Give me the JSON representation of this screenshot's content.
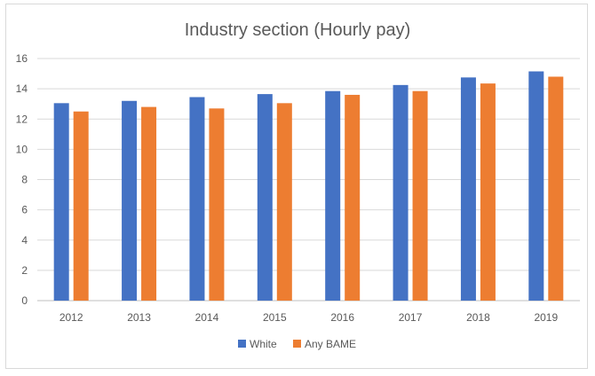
{
  "chart_data": {
    "type": "bar",
    "title": "Industry section (Hourly pay)",
    "xlabel": "",
    "ylabel": "",
    "categories": [
      "2012",
      "2013",
      "2014",
      "2015",
      "2016",
      "2017",
      "2018",
      "2019"
    ],
    "series": [
      {
        "name": "White",
        "color": "#4472c4",
        "values": [
          13.05,
          13.2,
          13.45,
          13.65,
          13.85,
          14.25,
          14.75,
          15.15
        ]
      },
      {
        "name": "Any BAME",
        "color": "#ed7d31",
        "values": [
          12.5,
          12.8,
          12.7,
          13.05,
          13.6,
          13.85,
          14.35,
          14.8
        ]
      }
    ],
    "ylim": [
      0,
      16
    ],
    "yticks": [
      "0",
      "2",
      "4",
      "6",
      "8",
      "10",
      "12",
      "14",
      "16"
    ],
    "grid": true,
    "legend_position": "bottom"
  }
}
